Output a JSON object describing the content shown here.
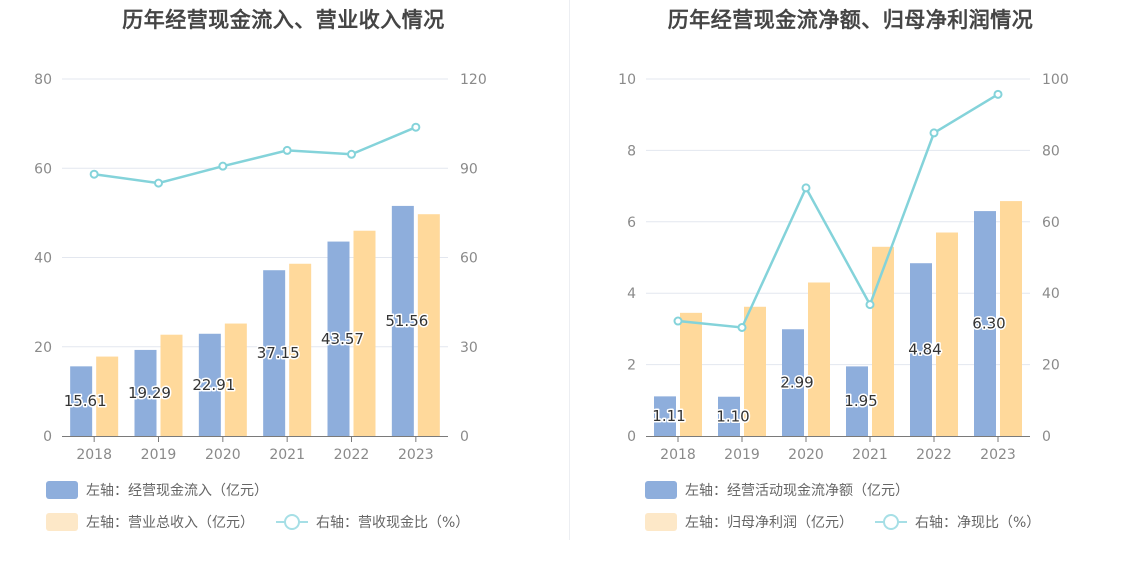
{
  "chart_data": [
    {
      "type": "bar",
      "title": "历年经营现金流入、营业收入情况",
      "categories": [
        "2018",
        "2019",
        "2020",
        "2021",
        "2022",
        "2023"
      ],
      "left_axis": {
        "ylim": [
          0,
          80
        ],
        "ticks": [
          "0",
          "20",
          "40",
          "60",
          "80"
        ]
      },
      "right_axis": {
        "ylim": [
          0,
          120
        ],
        "ticks": [
          "0",
          "30",
          "60",
          "90",
          "120"
        ]
      },
      "series": [
        {
          "name": "左轴：经营现金流入（亿元）",
          "axis": "left",
          "kind": "bar",
          "color": "#8eaedc",
          "values": [
            15.61,
            19.29,
            22.91,
            37.15,
            43.57,
            51.56
          ],
          "labels": [
            "15.61",
            "19.29",
            "22.91",
            "37.15",
            "43.57",
            "51.56"
          ]
        },
        {
          "name": "左轴：营业总收入（亿元）",
          "axis": "left",
          "kind": "bar",
          "color": "#ffd99b",
          "legend_color": "#fde8c8",
          "values": [
            17.8,
            22.7,
            25.2,
            38.6,
            46.0,
            49.7
          ]
        },
        {
          "name": "右轴：营收现金比（%）",
          "axis": "right",
          "kind": "line",
          "color": "#84d3da",
          "values": [
            88,
            85,
            90.7,
            96,
            94.7,
            103.8
          ]
        }
      ],
      "legend": {
        "position": "bottom"
      },
      "grid": true
    },
    {
      "type": "bar",
      "title": "历年经营现金流净额、归母净利润情况",
      "categories": [
        "2018",
        "2019",
        "2020",
        "2021",
        "2022",
        "2023"
      ],
      "left_axis": {
        "ylim": [
          0,
          10
        ],
        "ticks": [
          "0",
          "2",
          "4",
          "6",
          "8",
          "10"
        ]
      },
      "right_axis": {
        "ylim": [
          0,
          100
        ],
        "ticks": [
          "0",
          "20",
          "40",
          "60",
          "80",
          "100"
        ]
      },
      "series": [
        {
          "name": "左轴：经营活动现金流净额（亿元）",
          "axis": "left",
          "kind": "bar",
          "color": "#8eaedc",
          "values": [
            1.11,
            1.1,
            2.99,
            1.95,
            4.84,
            6.3
          ],
          "labels": [
            "1.11",
            "1.10",
            "2.99",
            "1.95",
            "4.84",
            "6.30"
          ]
        },
        {
          "name": "左轴：归母净利润（亿元）",
          "axis": "left",
          "kind": "bar",
          "color": "#ffd99b",
          "legend_color": "#fde8c8",
          "values": [
            3.45,
            3.62,
            4.3,
            5.3,
            5.7,
            6.58
          ]
        },
        {
          "name": "右轴：净现比（%）",
          "axis": "right",
          "kind": "line",
          "color": "#84d3da",
          "values": [
            32.2,
            30.4,
            69.5,
            36.8,
            84.9,
            95.7
          ]
        }
      ],
      "legend": {
        "position": "bottom"
      },
      "grid": true
    }
  ]
}
